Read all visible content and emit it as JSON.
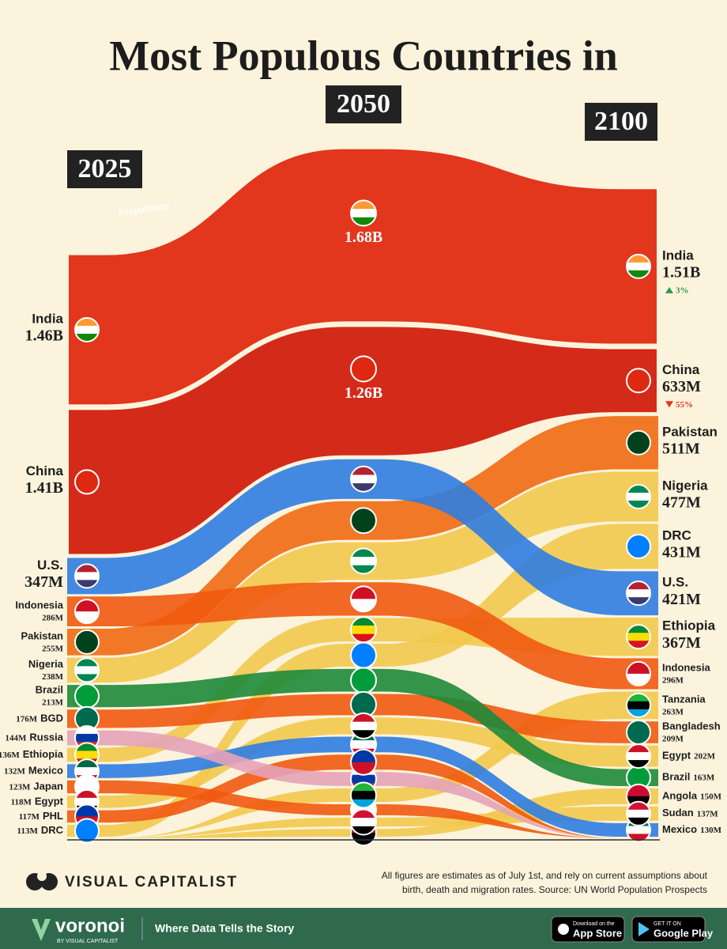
{
  "chart_data": {
    "type": "bump",
    "title": "Most Populous Countries in",
    "x": [
      "2025",
      "2050",
      "2100"
    ],
    "annotation": "Projections",
    "series": [
      {
        "names": [
          "India",
          "India"
        ],
        "color": "#e2361d",
        "flag": [
          "#ff9933",
          "#ffffff",
          "#138808"
        ],
        "values": [
          1460,
          1680,
          1510
        ],
        "value_labels": [
          "1.46B",
          "1.68B",
          "1.51B"
        ],
        "change": 3,
        "change_label": "3%"
      },
      {
        "names": [
          "China",
          "China"
        ],
        "color": "#d42a1a",
        "flag": [
          "#de2910"
        ],
        "values": [
          1410,
          1260,
          633
        ],
        "value_labels": [
          "1.41B",
          "1.26B",
          "633M"
        ],
        "change": -55,
        "change_label": "55%"
      },
      {
        "names": [
          "U.S.",
          "U.S."
        ],
        "color": "#2f7de1",
        "flag": [
          "#b22234",
          "#ffffff",
          "#3c3b6e"
        ],
        "values": [
          347,
          380,
          421
        ],
        "value_labels": [
          "347M",
          null,
          "421M"
        ]
      },
      {
        "names": [
          "Indonesia",
          "Indonesia"
        ],
        "color": "#f05a0f",
        "flag": [
          "#ce1126",
          "#ffffff"
        ],
        "values": [
          286,
          320,
          296
        ],
        "value_labels": [
          "286M",
          null,
          "296M"
        ]
      },
      {
        "names": [
          "Pakistan",
          "Pakistan"
        ],
        "color": "#f06a12",
        "flag": [
          "#01411c"
        ],
        "values": [
          255,
          370,
          511
        ],
        "value_labels": [
          "255M",
          null,
          "511M"
        ]
      },
      {
        "names": [
          "Nigeria",
          "Nigeria"
        ],
        "color": "#f2c94c",
        "flag": [
          "#008751",
          "#ffffff",
          "#008751"
        ],
        "values": [
          238,
          360,
          477
        ],
        "value_labels": [
          "238M",
          null,
          "477M"
        ]
      },
      {
        "names": [
          "Brazil",
          "Brazil"
        ],
        "color": "#1e8a3a",
        "flag": [
          "#009c3b"
        ],
        "values": [
          213,
          216,
          163
        ],
        "value_labels": [
          "213M",
          null,
          "163M"
        ]
      },
      {
        "names": [
          "BGD",
          "Bangladesh"
        ],
        "color": "#f05a0f",
        "flag": [
          "#006a4e"
        ],
        "values": [
          176,
          204,
          209
        ],
        "value_labels": [
          "176M",
          null,
          "209M"
        ]
      },
      {
        "names": [
          "Russia",
          null
        ],
        "color": "#e6a3b8",
        "flag": [
          "#ffffff",
          "#0039a6",
          "#d52b1e"
        ],
        "values": [
          144,
          133,
          null
        ],
        "value_labels": [
          "144M",
          null,
          null
        ]
      },
      {
        "names": [
          "Ethiopia",
          "Ethiopia"
        ],
        "color": "#f2c94c",
        "flag": [
          "#078930",
          "#fcdd09",
          "#da121a"
        ],
        "values": [
          136,
          225,
          367
        ],
        "value_labels": [
          "136M",
          null,
          "367M"
        ]
      },
      {
        "names": [
          "Mexico",
          "Mexico"
        ],
        "color": "#2f7de1",
        "flag": [
          "#006847",
          "#ffffff",
          "#ce1126"
        ],
        "values": [
          132,
          150,
          130
        ],
        "value_labels": [
          "132M",
          null,
          "130M"
        ]
      },
      {
        "names": [
          "Japan",
          null
        ],
        "color": "#f05a0f",
        "flag": [
          "#ffffff"
        ],
        "values": [
          123,
          105,
          null
        ],
        "value_labels": [
          "123M",
          null,
          null
        ]
      },
      {
        "names": [
          "Egypt",
          "Egypt"
        ],
        "color": "#f2c94c",
        "flag": [
          "#ce1126",
          "#ffffff",
          "#000000"
        ],
        "values": [
          118,
          160,
          202
        ],
        "value_labels": [
          "118M",
          null,
          "202M"
        ]
      },
      {
        "names": [
          "PHL",
          null
        ],
        "color": "#f05a0f",
        "flag": [
          "#0038a8",
          "#ce1126"
        ],
        "values": [
          117,
          144,
          null
        ],
        "value_labels": [
          "117M",
          null,
          null
        ]
      },
      {
        "names": [
          "DRC",
          "DRC"
        ],
        "color": "#f2c94c",
        "flag": [
          "#007fff"
        ],
        "values": [
          113,
          218,
          431
        ],
        "value_labels": [
          "113M",
          null,
          "431M"
        ]
      },
      {
        "names": [
          null,
          "Tanzania"
        ],
        "color": "#f2c94c",
        "flag": [
          "#1eb53a",
          "#000000",
          "#00a3dd"
        ],
        "values": [
          null,
          130,
          263
        ],
        "value_labels": [
          null,
          null,
          "263M"
        ]
      },
      {
        "names": [
          null,
          "Angola"
        ],
        "color": "#f2c94c",
        "flag": [
          "#cc092f",
          "#000000"
        ],
        "values": [
          null,
          75,
          150
        ],
        "value_labels": [
          null,
          null,
          "150M"
        ]
      },
      {
        "names": [
          null,
          "Sudan"
        ],
        "color": "#f2c94c",
        "flag": [
          "#d21034",
          "#ffffff",
          "#000000"
        ],
        "values": [
          null,
          85,
          137
        ],
        "value_labels": [
          null,
          null,
          "137M"
        ]
      }
    ]
  },
  "footer": {
    "brand": "VISUAL CAPITALIST",
    "note_lines": [
      "All figures are estimates as of July 1st, and rely on current assumptions about",
      "birth, death and migration rates. Source: UN World Population Prospects"
    ],
    "app": "voronoi",
    "app_by": "BY VISUAL CAPITALIST",
    "tagline": "Where Data Tells the Story",
    "store1_small": "Download on the",
    "store1": "App Store",
    "store2_small": "GET IT ON",
    "store2": "Google Play"
  }
}
